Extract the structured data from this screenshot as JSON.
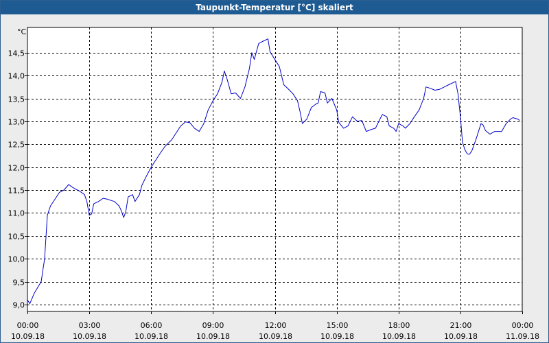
{
  "window": {
    "title": "Taupunkt-Temperatur [°C] skaliert"
  },
  "chart_data": {
    "type": "line",
    "title": "Taupunkt-Temperatur [°C] skaliert",
    "ylabel": "°C",
    "xlabel": "",
    "ylim": [
      8.85,
      15.05
    ],
    "xlim_hours": [
      0,
      24
    ],
    "grid": true,
    "line_color": "#0000c8",
    "y_ticks": [
      "9,0",
      "9,5",
      "10,0",
      "10,5",
      "11,0",
      "11,5",
      "12,0",
      "12,5",
      "13,0",
      "13,5",
      "14,0",
      "14,5"
    ],
    "y_tick_values": [
      9.0,
      9.5,
      10.0,
      10.5,
      11.0,
      11.5,
      12.0,
      12.5,
      13.0,
      13.5,
      14.0,
      14.5
    ],
    "x_ticks": [
      {
        "time": "00:00",
        "date": "10.09.18"
      },
      {
        "time": "03:00",
        "date": "10.09.18"
      },
      {
        "time": "06:00",
        "date": "10.09.18"
      },
      {
        "time": "09:00",
        "date": "10.09.18"
      },
      {
        "time": "12:00",
        "date": "10.09.18"
      },
      {
        "time": "15:00",
        "date": "10.09.18"
      },
      {
        "time": "18:00",
        "date": "10.09.18"
      },
      {
        "time": "21:00",
        "date": "10.09.18"
      },
      {
        "time": "00:00",
        "date": "11.09.18"
      }
    ],
    "series": [
      {
        "color": "#0000c8",
        "points": [
          [
            "10.09.18 00:00",
            9.1
          ],
          [
            "10.09.18 00:07",
            9.02
          ],
          [
            "10.09.18 00:20",
            9.25
          ],
          [
            "10.09.18 00:40",
            9.5
          ],
          [
            "10.09.18 00:50",
            10.0
          ],
          [
            "10.09.18 00:58",
            10.95
          ],
          [
            "10.09.18 01:07",
            11.15
          ],
          [
            "10.09.18 01:20",
            11.3
          ],
          [
            "10.09.18 01:33",
            11.45
          ],
          [
            "10.09.18 01:46",
            11.5
          ],
          [
            "10.09.18 02:00",
            11.62
          ],
          [
            "10.09.18 02:13",
            11.55
          ],
          [
            "10.09.18 02:33",
            11.47
          ],
          [
            "10.09.18 02:46",
            11.4
          ],
          [
            "10.09.18 02:53",
            11.25
          ],
          [
            "10.09.18 03:00",
            10.95
          ],
          [
            "10.09.18 03:07",
            10.98
          ],
          [
            "10.09.18 03:13",
            11.2
          ],
          [
            "10.09.18 03:27",
            11.25
          ],
          [
            "10.09.18 03:40",
            11.32
          ],
          [
            "10.09.18 03:53",
            11.3
          ],
          [
            "10.09.18 04:00",
            11.28
          ],
          [
            "10.09.18 04:13",
            11.25
          ],
          [
            "10.09.18 04:27",
            11.15
          ],
          [
            "10.09.18 04:33",
            11.05
          ],
          [
            "10.09.18 04:40",
            10.9
          ],
          [
            "10.09.18 04:46",
            11.02
          ],
          [
            "10.09.18 04:53",
            11.35
          ],
          [
            "10.09.18 05:06",
            11.4
          ],
          [
            "10.09.18 05:13",
            11.25
          ],
          [
            "10.09.18 05:26",
            11.4
          ],
          [
            "10.09.18 05:33",
            11.6
          ],
          [
            "10.09.18 05:46",
            11.8
          ],
          [
            "10.09.18 06:00",
            12.0
          ],
          [
            "10.09.18 06:13",
            12.15
          ],
          [
            "10.09.18 06:26",
            12.3
          ],
          [
            "10.09.18 06:40",
            12.45
          ],
          [
            "10.09.18 07:00",
            12.6
          ],
          [
            "10.09.18 07:13",
            12.75
          ],
          [
            "10.09.18 07:26",
            12.9
          ],
          [
            "10.09.18 07:40",
            12.99
          ],
          [
            "10.09.18 07:53",
            12.97
          ],
          [
            "10.09.18 08:06",
            12.85
          ],
          [
            "10.09.18 08:20",
            12.78
          ],
          [
            "10.09.18 08:33",
            12.95
          ],
          [
            "10.09.18 08:46",
            13.25
          ],
          [
            "10.09.18 09:00",
            13.45
          ],
          [
            "10.09.18 09:13",
            13.6
          ],
          [
            "10.09.18 09:26",
            13.85
          ],
          [
            "10.09.18 09:33",
            14.1
          ],
          [
            "10.09.18 09:40",
            13.95
          ],
          [
            "10.09.18 09:53",
            13.6
          ],
          [
            "10.09.18 10:06",
            13.62
          ],
          [
            "10.09.18 10:20",
            13.5
          ],
          [
            "10.09.18 10:33",
            13.75
          ],
          [
            "10.09.18 10:46",
            14.15
          ],
          [
            "10.09.18 10:53",
            14.5
          ],
          [
            "10.09.18 11:00",
            14.35
          ],
          [
            "10.09.18 11:13",
            14.7
          ],
          [
            "10.09.18 11:26",
            14.75
          ],
          [
            "10.09.18 11:40",
            14.8
          ],
          [
            "10.09.18 11:46",
            14.52
          ],
          [
            "10.09.18 12:00",
            14.35
          ],
          [
            "10.09.18 12:13",
            14.2
          ],
          [
            "10.09.18 12:26",
            13.8
          ],
          [
            "10.09.18 12:40",
            13.7
          ],
          [
            "10.09.18 12:53",
            13.6
          ],
          [
            "10.09.18 13:06",
            13.45
          ],
          [
            "10.09.18 13:13",
            13.22
          ],
          [
            "10.09.18 13:20",
            12.95
          ],
          [
            "10.09.18 13:33",
            13.05
          ],
          [
            "10.09.18 13:46",
            13.3
          ],
          [
            "10.09.18 14:00",
            13.38
          ],
          [
            "10.09.18 14:06",
            13.4
          ],
          [
            "10.09.18 14:13",
            13.65
          ],
          [
            "10.09.18 14:26",
            13.62
          ],
          [
            "10.09.18 14:33",
            13.4
          ],
          [
            "10.09.18 14:46",
            13.5
          ],
          [
            "10.09.18 15:00",
            13.25
          ],
          [
            "10.09.18 15:06",
            12.98
          ],
          [
            "10.09.18 15:20",
            12.85
          ],
          [
            "10.09.18 15:33",
            12.9
          ],
          [
            "10.09.18 15:46",
            13.1
          ],
          [
            "10.09.18 16:00",
            13.0
          ],
          [
            "10.09.18 16:13",
            13.02
          ],
          [
            "10.09.18 16:26",
            12.78
          ],
          [
            "10.09.18 16:40",
            12.82
          ],
          [
            "10.09.18 16:53",
            12.85
          ],
          [
            "10.09.18 17:06",
            13.05
          ],
          [
            "10.09.18 17:13",
            13.15
          ],
          [
            "10.09.18 17:26",
            13.1
          ],
          [
            "10.09.18 17:33",
            12.9
          ],
          [
            "10.09.18 17:46",
            12.85
          ],
          [
            "10.09.18 17:53",
            12.78
          ],
          [
            "10.09.18 18:00",
            12.95
          ],
          [
            "10.09.18 18:13",
            12.9
          ],
          [
            "10.09.18 18:20",
            12.85
          ],
          [
            "10.09.18 18:33",
            12.95
          ],
          [
            "10.09.18 18:46",
            13.1
          ],
          [
            "10.09.18 19:00",
            13.25
          ],
          [
            "10.09.18 19:13",
            13.5
          ],
          [
            "10.09.18 19:20",
            13.75
          ],
          [
            "10.09.18 19:33",
            13.72
          ],
          [
            "10.09.18 19:46",
            13.68
          ],
          [
            "10.09.18 20:00",
            13.7
          ],
          [
            "10.09.18 20:13",
            13.75
          ],
          [
            "10.09.18 20:26",
            13.8
          ],
          [
            "10.09.18 20:46",
            13.87
          ],
          [
            "10.09.18 20:53",
            13.6
          ],
          [
            "10.09.18 21:00",
            13.1
          ],
          [
            "10.09.18 21:06",
            12.55
          ],
          [
            "10.09.18 21:13",
            12.38
          ],
          [
            "10.09.18 21:20",
            12.29
          ],
          [
            "10.09.18 21:26",
            12.28
          ],
          [
            "10.09.18 21:33",
            12.35
          ],
          [
            "10.09.18 21:46",
            12.62
          ],
          [
            "10.09.18 22:00",
            12.95
          ],
          [
            "10.09.18 22:06",
            12.92
          ],
          [
            "10.09.18 22:13",
            12.8
          ],
          [
            "10.09.18 22:26",
            12.72
          ],
          [
            "10.09.18 22:40",
            12.78
          ],
          [
            "10.09.18 23:00",
            12.78
          ],
          [
            "10.09.18 23:13",
            12.95
          ],
          [
            "10.09.18 23:26",
            13.05
          ],
          [
            "10.09.18 23:33",
            13.08
          ],
          [
            "10.09.18 23:46",
            13.05
          ],
          [
            "10.09.18 23:53",
            13.02
          ]
        ]
      }
    ]
  }
}
